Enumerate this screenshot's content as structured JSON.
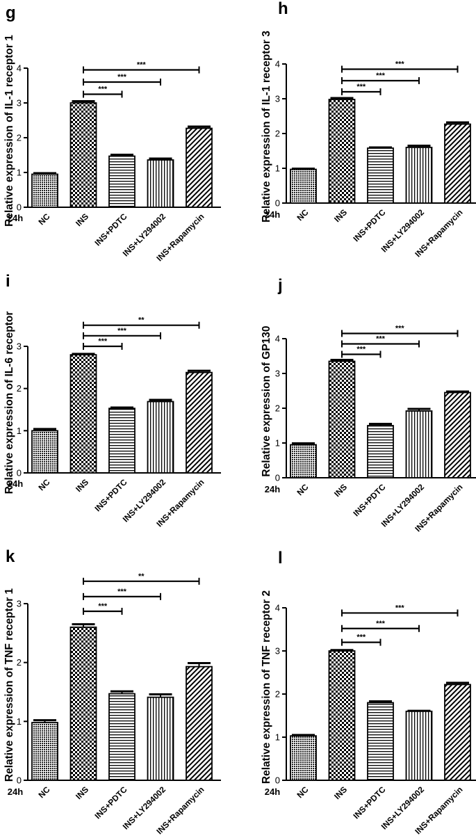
{
  "chart_data": [
    {
      "panel": "g",
      "type": "bar",
      "ylabel": "Relative expression of IL-1 receptor 1",
      "time_label": "24h",
      "categories": [
        "NC",
        "INS",
        "INS+PDTC",
        "INS+LY294002",
        "INS+Rapamycin"
      ],
      "values": [
        0.95,
        3.0,
        1.47,
        1.36,
        2.27
      ],
      "errors": [
        0.03,
        0.05,
        0.04,
        0.04,
        0.05
      ],
      "patterns": [
        "dense",
        "checker",
        "hlines",
        "vlines",
        "diag"
      ],
      "ylim": [
        0,
        4
      ],
      "yticks": [
        "0",
        "1",
        "2",
        "3",
        "4"
      ],
      "significance": [
        {
          "to": "INS+PDTC",
          "y": 3.25,
          "label": "***"
        },
        {
          "to": "INS+LY294002",
          "y": 3.6,
          "label": "***"
        },
        {
          "to": "INS+Rapamycin",
          "y": 3.95,
          "label": "***"
        }
      ]
    },
    {
      "panel": "h",
      "type": "bar",
      "ylabel": "Relative expression of IL-1 receptor 3",
      "time_label": "24h",
      "categories": [
        "NC",
        "INS",
        "INS+PDTC",
        "INS+LY294002",
        "INS+Rapamycin"
      ],
      "values": [
        0.97,
        2.98,
        1.58,
        1.6,
        2.27
      ],
      "errors": [
        0.02,
        0.04,
        0.02,
        0.05,
        0.05
      ],
      "patterns": [
        "dense",
        "checker",
        "hlines",
        "vlines",
        "diag"
      ],
      "ylim": [
        0,
        4
      ],
      "yticks": [
        "0",
        "1",
        "2",
        "3",
        "4"
      ],
      "significance": [
        {
          "to": "INS+PDTC",
          "y": 3.2,
          "label": "***"
        },
        {
          "to": "INS+LY294002",
          "y": 3.52,
          "label": "***"
        },
        {
          "to": "INS+Rapamycin",
          "y": 3.85,
          "label": "***"
        }
      ]
    },
    {
      "panel": "i",
      "type": "bar",
      "ylabel": "Relative expression of IL-6 receptor",
      "time_label": "24h",
      "categories": [
        "NC",
        "INS",
        "INS+PDTC",
        "INS+LY294002",
        "INS+Rapamycin"
      ],
      "values": [
        1.0,
        2.8,
        1.53,
        1.69,
        2.38
      ],
      "errors": [
        0.04,
        0.02,
        0.02,
        0.04,
        0.04
      ],
      "patterns": [
        "dense",
        "checker",
        "hlines",
        "vlines",
        "diag"
      ],
      "ylim": [
        0,
        3
      ],
      "yticks": [
        "0",
        "1",
        "2",
        "3"
      ],
      "significance": [
        {
          "to": "INS+PDTC",
          "y": 3.0,
          "label": "***"
        },
        {
          "to": "INS+LY294002",
          "y": 3.25,
          "label": "***"
        },
        {
          "to": "INS+Rapamycin",
          "y": 3.5,
          "label": "**"
        }
      ]
    },
    {
      "panel": "j",
      "type": "bar",
      "ylabel": "Relative expression of GP130",
      "time_label": "24h",
      "categories": [
        "NC",
        "INS",
        "INS+PDTC",
        "INS+LY294002",
        "INS+Rapamycin"
      ],
      "values": [
        0.95,
        3.35,
        1.5,
        1.92,
        2.45
      ],
      "errors": [
        0.04,
        0.04,
        0.05,
        0.06,
        0.03
      ],
      "patterns": [
        "dense",
        "checker",
        "hlines",
        "vlines",
        "diag"
      ],
      "ylim": [
        0,
        4
      ],
      "yticks": [
        "0",
        "1",
        "2",
        "3",
        "4"
      ],
      "significance": [
        {
          "to": "INS+PDTC",
          "y": 3.55,
          "label": "***"
        },
        {
          "to": "INS+LY294002",
          "y": 3.85,
          "label": "***"
        },
        {
          "to": "INS+Rapamycin",
          "y": 4.15,
          "label": "***"
        }
      ]
    },
    {
      "panel": "k",
      "type": "bar",
      "ylabel": "Relative expression of TNF receptor 1",
      "time_label": "24h",
      "categories": [
        "NC",
        "INS",
        "INS+PDTC",
        "INS+LY294002",
        "INS+Rapamycin"
      ],
      "values": [
        0.98,
        2.6,
        1.47,
        1.41,
        1.93
      ],
      "errors": [
        0.04,
        0.05,
        0.04,
        0.05,
        0.06
      ],
      "patterns": [
        "dense",
        "checker",
        "hlines",
        "vlines",
        "diag"
      ],
      "ylim": [
        0,
        3
      ],
      "yticks": [
        "0",
        "1",
        "2",
        "3"
      ],
      "significance": [
        {
          "to": "INS+PDTC",
          "y": 2.87,
          "label": "***"
        },
        {
          "to": "INS+LY294002",
          "y": 3.12,
          "label": "***"
        },
        {
          "to": "INS+Rapamycin",
          "y": 3.38,
          "label": "**"
        }
      ]
    },
    {
      "panel": "l",
      "type": "bar",
      "ylabel": "Relative expression of TNF receptor 2",
      "time_label": "24h",
      "categories": [
        "NC",
        "INS",
        "INS+PDTC",
        "INS+LY294002",
        "INS+Rapamycin"
      ],
      "values": [
        1.03,
        3.0,
        1.8,
        1.6,
        2.22
      ],
      "errors": [
        0.02,
        0.02,
        0.03,
        0.01,
        0.04
      ],
      "patterns": [
        "dense",
        "checker",
        "hlines",
        "vlines",
        "diag"
      ],
      "ylim": [
        0,
        4
      ],
      "yticks": [
        "0",
        "1",
        "2",
        "3",
        "4"
      ],
      "significance": [
        {
          "to": "INS+PDTC",
          "y": 3.2,
          "label": "***"
        },
        {
          "to": "INS+LY294002",
          "y": 3.52,
          "label": "***"
        },
        {
          "to": "INS+Rapamycin",
          "y": 3.88,
          "label": "***"
        }
      ]
    }
  ]
}
